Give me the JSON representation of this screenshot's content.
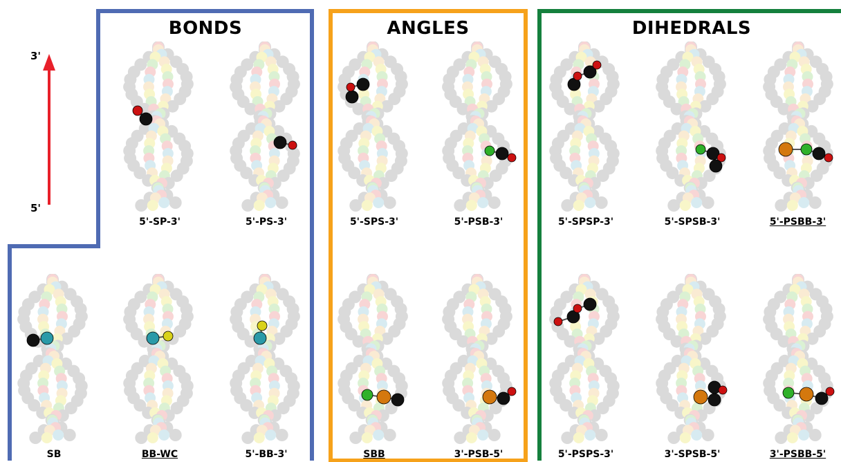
{
  "axis": {
    "top_label": "3'",
    "bottom_label": "5'",
    "arrow_color": "#e8202a"
  },
  "panels": {
    "bonds": {
      "title": "BONDS",
      "color": "#4f6bb3"
    },
    "angles": {
      "title": "ANGLES",
      "color": "#f6a21b"
    },
    "dihedrals": {
      "title": "DIHEDRALS",
      "color": "#15803d"
    }
  },
  "molecules": [
    {
      "id": "sp",
      "label": "5'-SP-3'",
      "underline": false
    },
    {
      "id": "ps",
      "label": "5'-PS-3'",
      "underline": false
    },
    {
      "id": "sb",
      "label": "SB",
      "underline": false
    },
    {
      "id": "bbwc",
      "label": "BB-WC",
      "underline": true
    },
    {
      "id": "bb3",
      "label": "5'-BB-3'",
      "underline": false
    },
    {
      "id": "sps",
      "label": "5'-SPS-3'",
      "underline": false
    },
    {
      "id": "psb3",
      "label": "5'-PSB-3'",
      "underline": false
    },
    {
      "id": "sbb",
      "label": "SBB",
      "underline": true
    },
    {
      "id": "psb5",
      "label": "3'-PSB-5'",
      "underline": false
    },
    {
      "id": "spsp",
      "label": "5'-SPSP-3'",
      "underline": false
    },
    {
      "id": "spsb3",
      "label": "5'-SPSB-3'",
      "underline": false
    },
    {
      "id": "psbb3",
      "label": "5'-PSBB-3'",
      "underline": true
    },
    {
      "id": "psps",
      "label": "5'-PSPS-3'",
      "underline": false
    },
    {
      "id": "spsb5",
      "label": "3'-SPSB-5'",
      "underline": false
    },
    {
      "id": "psbb5",
      "label": "3'-PSBB-5'",
      "underline": true
    }
  ],
  "bead_colors": {
    "phosphate": "#111111",
    "phosphate_tip": "#cc1111",
    "sugar_base": "#2a9aa8",
    "wc_partner": "#d9d21a",
    "base_orange": "#d4780e",
    "base_green": "#2fb12a"
  }
}
